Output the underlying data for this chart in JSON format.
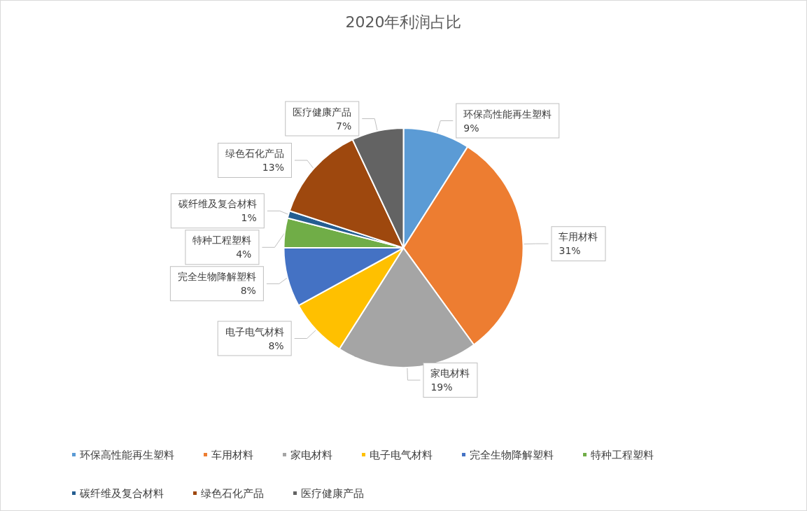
{
  "chart_data": {
    "type": "pie",
    "title": "2020年利润占比",
    "categories": [
      "环保高性能再生塑料",
      "车用材料",
      "家电材料",
      "电子电气材料",
      "完全生物降解塑料",
      "特种工程塑料",
      "碳纤维及复合材料",
      "绿色石化产品",
      "医疗健康产品"
    ],
    "values": [
      9,
      31,
      19,
      8,
      8,
      4,
      1,
      13,
      7
    ],
    "value_labels": [
      "9%",
      "31%",
      "19%",
      "8%",
      "8%",
      "4%",
      "1%",
      "13%",
      "7%"
    ],
    "colors": [
      "#5b9bd5",
      "#ed7d31",
      "#a5a5a5",
      "#ffc000",
      "#4472c4",
      "#70ad47",
      "#255e91",
      "#9e480e",
      "#636363"
    ],
    "legend": "bottom"
  }
}
